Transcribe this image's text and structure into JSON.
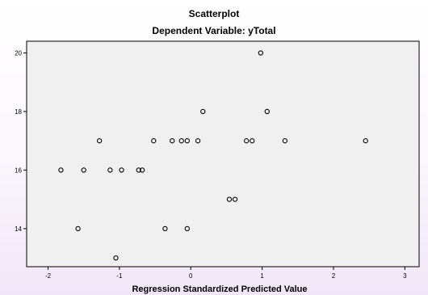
{
  "chart_data": {
    "type": "scatter",
    "title": "Scatterplot",
    "subtitle": "Dependent Variable: yTotal",
    "xlabel": "Regression Standardized Predicted Value",
    "ylabel": "",
    "xlim": [
      -2.3,
      3.2
    ],
    "ylim": [
      12.7,
      20.4
    ],
    "xticks": [
      -2,
      -1,
      0,
      1,
      2,
      3
    ],
    "xtick_labels": [
      "-2",
      "-1",
      "0",
      "1",
      "2",
      "3"
    ],
    "yticks": [
      14,
      16,
      18,
      20
    ],
    "ytick_labels": [
      "14",
      "16",
      "18",
      "20"
    ],
    "grid": false,
    "legend": "none",
    "plot_background": "#f0f0f0",
    "marker_color": "#000000",
    "points": [
      {
        "x": 0.98,
        "y": 20
      },
      {
        "x": 0.17,
        "y": 18
      },
      {
        "x": 1.07,
        "y": 18
      },
      {
        "x": -1.28,
        "y": 17
      },
      {
        "x": -0.52,
        "y": 17
      },
      {
        "x": -0.26,
        "y": 17
      },
      {
        "x": -0.13,
        "y": 17
      },
      {
        "x": -0.05,
        "y": 17
      },
      {
        "x": 0.1,
        "y": 17
      },
      {
        "x": 0.78,
        "y": 17
      },
      {
        "x": 0.86,
        "y": 17
      },
      {
        "x": 1.32,
        "y": 17
      },
      {
        "x": 2.45,
        "y": 17
      },
      {
        "x": -1.82,
        "y": 16
      },
      {
        "x": -1.5,
        "y": 16
      },
      {
        "x": -1.13,
        "y": 16
      },
      {
        "x": -0.97,
        "y": 16
      },
      {
        "x": -0.73,
        "y": 16
      },
      {
        "x": -0.68,
        "y": 16
      },
      {
        "x": 0.54,
        "y": 15
      },
      {
        "x": 0.62,
        "y": 15
      },
      {
        "x": -1.58,
        "y": 14
      },
      {
        "x": -0.36,
        "y": 14
      },
      {
        "x": -0.05,
        "y": 14
      },
      {
        "x": -1.05,
        "y": 13
      }
    ]
  }
}
